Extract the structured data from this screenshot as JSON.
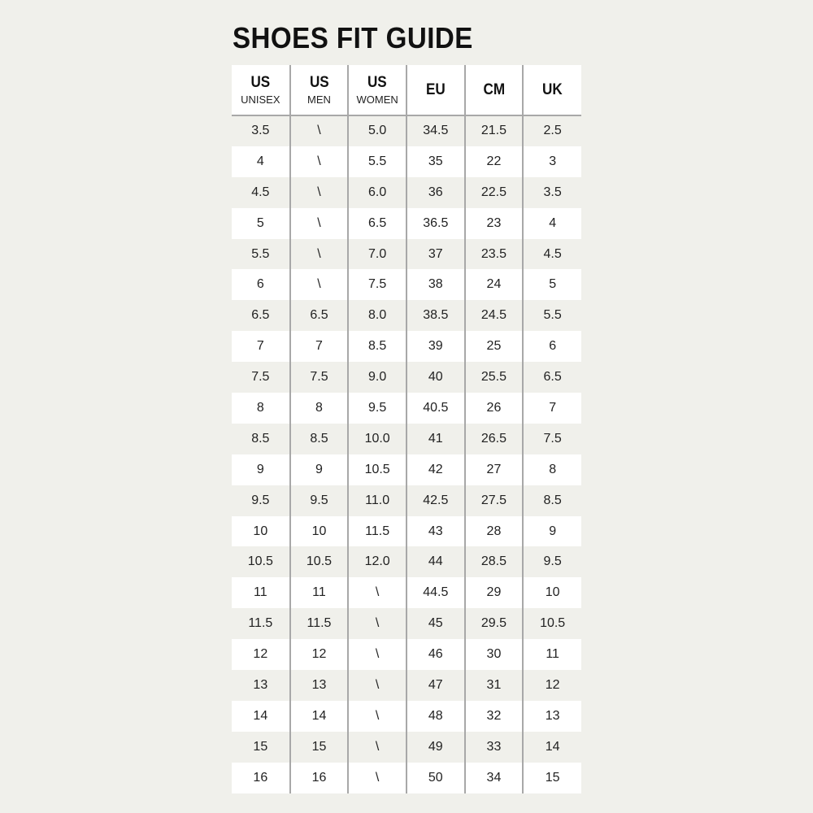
{
  "title": "SHOES FIT GUIDE",
  "columns": [
    {
      "main": "US",
      "sub": "UNISEX"
    },
    {
      "main": "US",
      "sub": "MEN"
    },
    {
      "main": "US",
      "sub": "WOMEN"
    },
    {
      "main": "EU",
      "sub": ""
    },
    {
      "main": "CM",
      "sub": ""
    },
    {
      "main": "UK",
      "sub": ""
    }
  ],
  "rows": [
    [
      "3.5",
      "\\",
      "5.0",
      "34.5",
      "21.5",
      "2.5"
    ],
    [
      "4",
      "\\",
      "5.5",
      "35",
      "22",
      "3"
    ],
    [
      "4.5",
      "\\",
      "6.0",
      "36",
      "22.5",
      "3.5"
    ],
    [
      "5",
      "\\",
      "6.5",
      "36.5",
      "23",
      "4"
    ],
    [
      "5.5",
      "\\",
      "7.0",
      "37",
      "23.5",
      "4.5"
    ],
    [
      "6",
      "\\",
      "7.5",
      "38",
      "24",
      "5"
    ],
    [
      "6.5",
      "6.5",
      "8.0",
      "38.5",
      "24.5",
      "5.5"
    ],
    [
      "7",
      "7",
      "8.5",
      "39",
      "25",
      "6"
    ],
    [
      "7.5",
      "7.5",
      "9.0",
      "40",
      "25.5",
      "6.5"
    ],
    [
      "8",
      "8",
      "9.5",
      "40.5",
      "26",
      "7"
    ],
    [
      "8.5",
      "8.5",
      "10.0",
      "41",
      "26.5",
      "7.5"
    ],
    [
      "9",
      "9",
      "10.5",
      "42",
      "27",
      "8"
    ],
    [
      "9.5",
      "9.5",
      "11.0",
      "42.5",
      "27.5",
      "8.5"
    ],
    [
      "10",
      "10",
      "11.5",
      "43",
      "28",
      "9"
    ],
    [
      "10.5",
      "10.5",
      "12.0",
      "44",
      "28.5",
      "9.5"
    ],
    [
      "11",
      "11",
      "\\",
      "44.5",
      "29",
      "10"
    ],
    [
      "11.5",
      "11.5",
      "\\",
      "45",
      "29.5",
      "10.5"
    ],
    [
      "12",
      "12",
      "\\",
      "46",
      "30",
      "11"
    ],
    [
      "13",
      "13",
      "\\",
      "47",
      "31",
      "12"
    ],
    [
      "14",
      "14",
      "\\",
      "48",
      "32",
      "13"
    ],
    [
      "15",
      "15",
      "\\",
      "49",
      "33",
      "14"
    ],
    [
      "16",
      "16",
      "\\",
      "50",
      "34",
      "15"
    ]
  ]
}
